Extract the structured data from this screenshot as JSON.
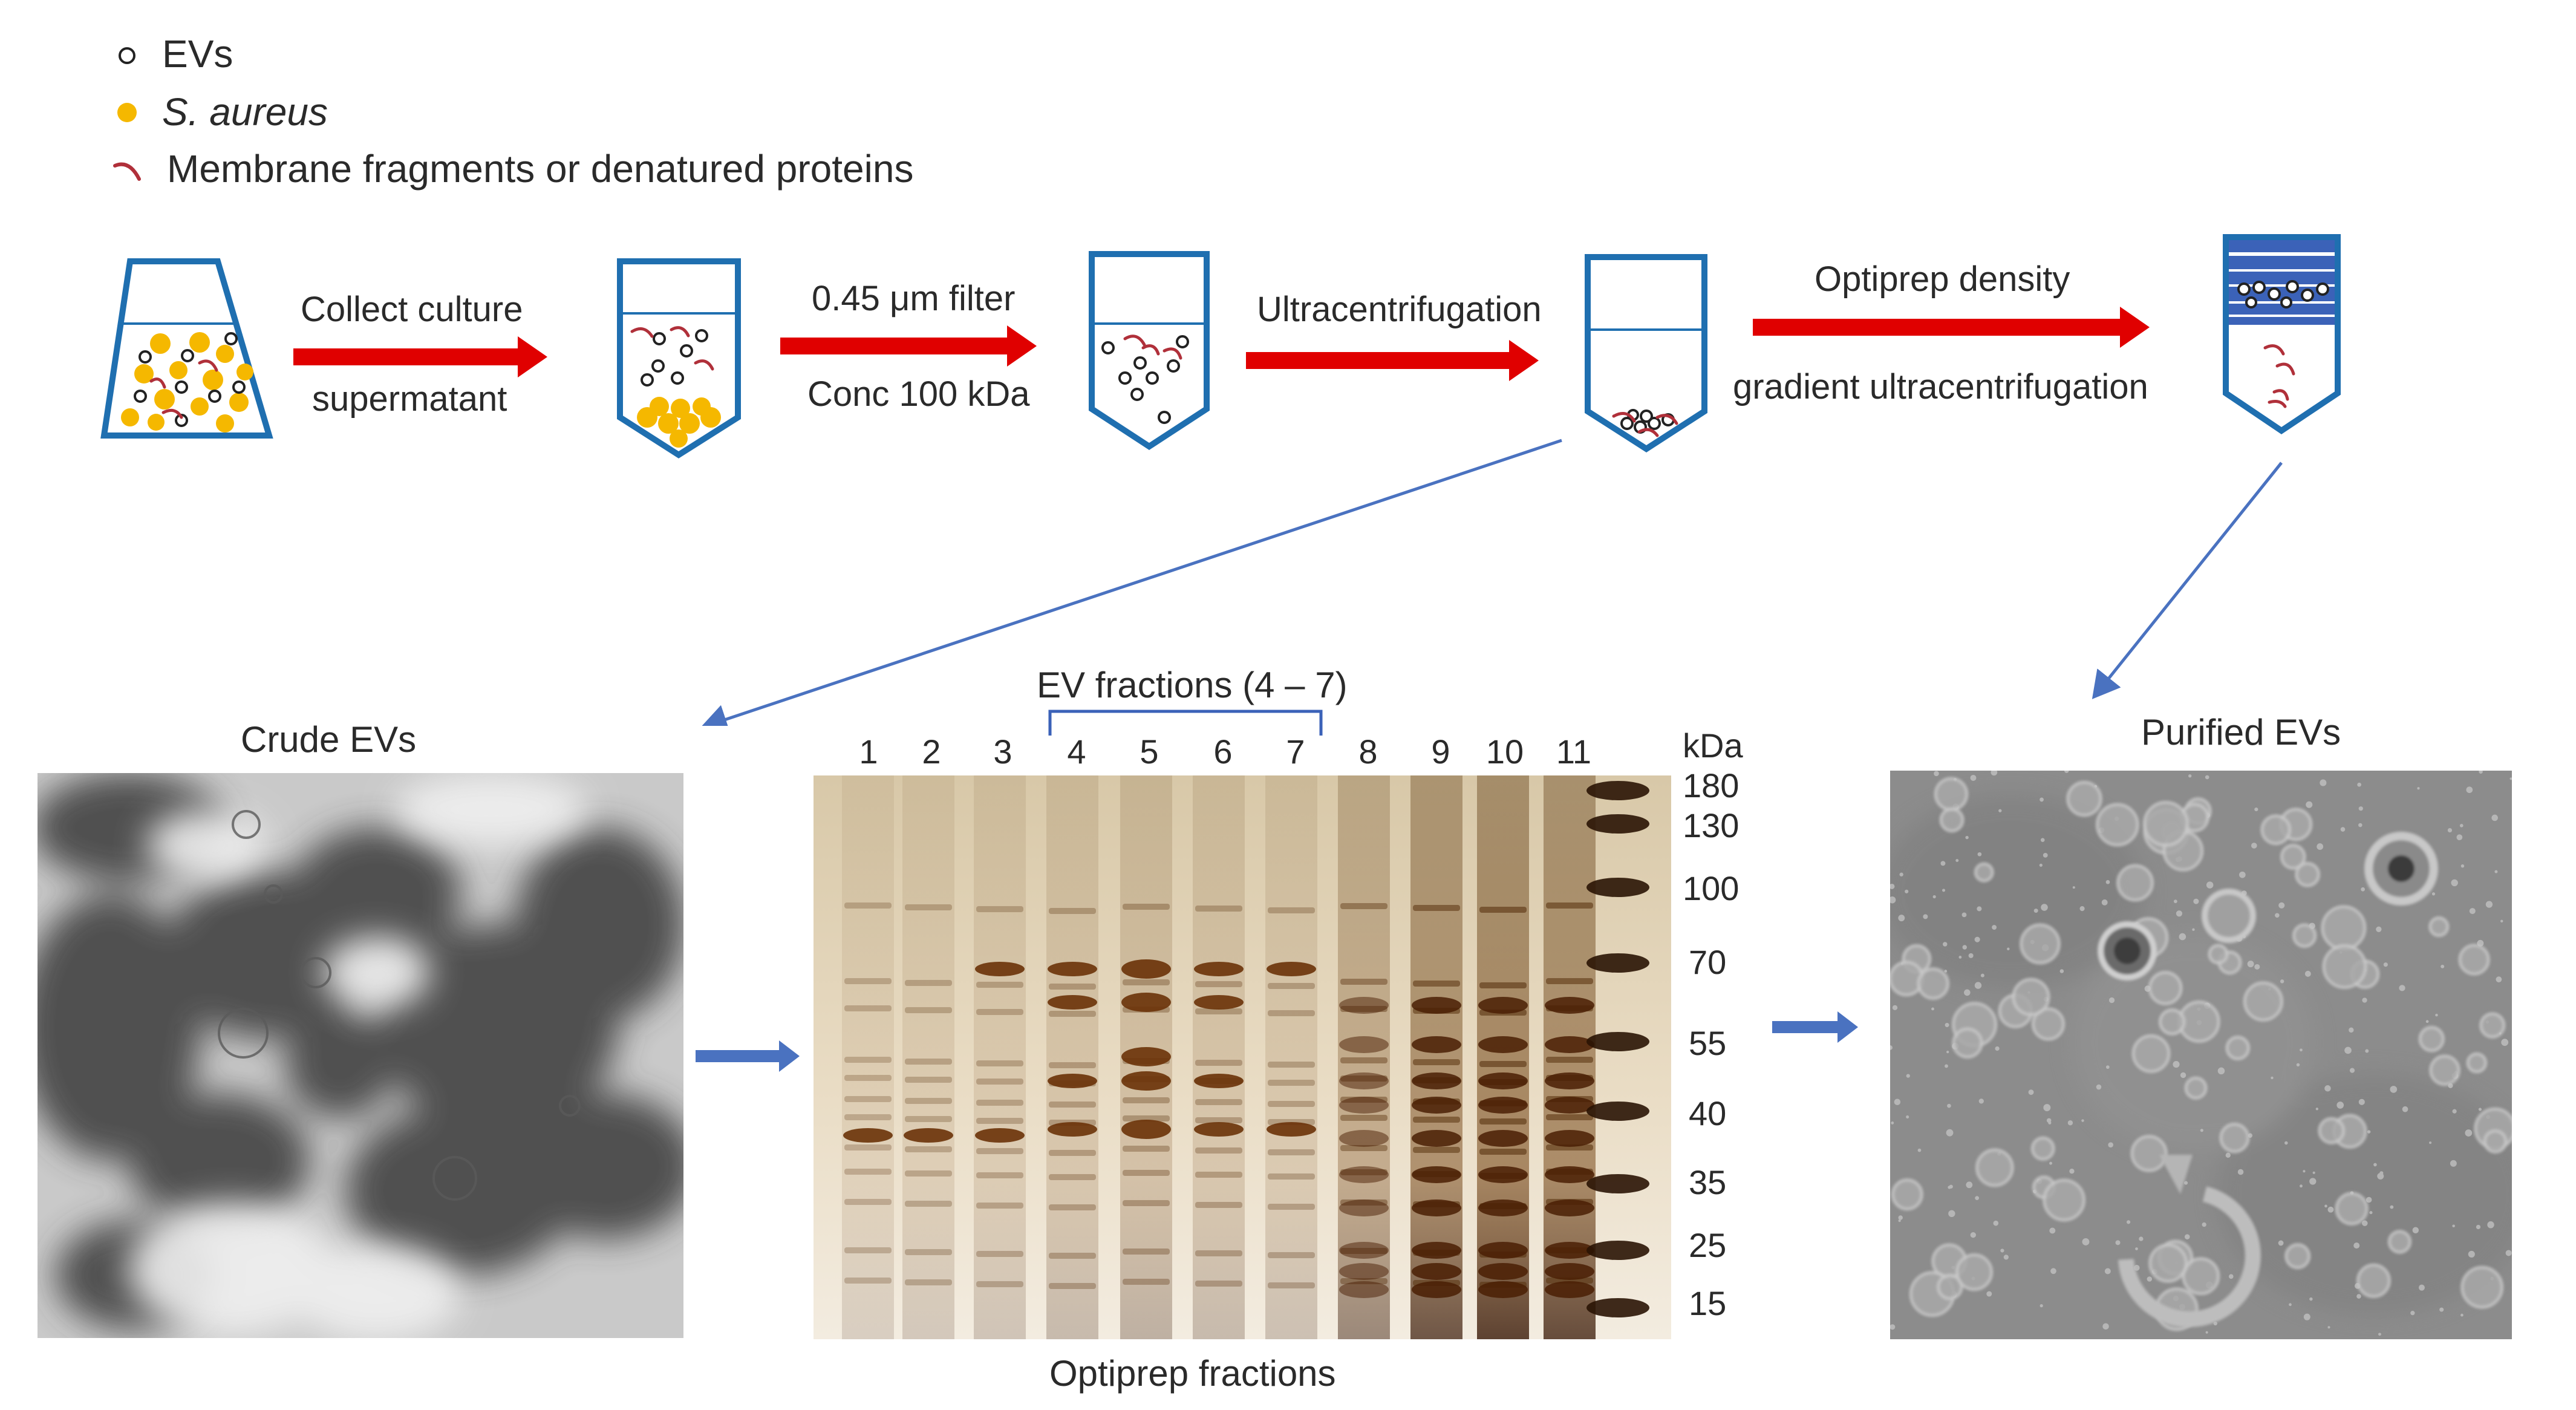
{
  "legend": {
    "items": [
      {
        "label": "EVs",
        "symbol": "open-circle-icon"
      },
      {
        "label": "S. aureus",
        "symbol": "yellow-dot-icon"
      },
      {
        "label": "Membrane fragments or denatured proteins",
        "symbol": "red-curve-icon"
      }
    ]
  },
  "workflow": {
    "steps": [
      {
        "top_label": "Collect culture",
        "bottom_label": "supermatant"
      },
      {
        "top_label": "0.45 μm filter",
        "bottom_label": "Conc 100 kDa"
      },
      {
        "top_label": "Ultracentrifugation",
        "bottom_label": ""
      },
      {
        "top_label": "Optiprep density",
        "bottom_label": "gradient ultracentrifugation"
      }
    ]
  },
  "panels": {
    "crude_title": "Crude EVs",
    "purified_title": "Purified EVs",
    "gel_caption": "Optiprep fractions",
    "ev_bracket_label": "EV fractions (4 – 7)"
  },
  "gel": {
    "lanes": [
      "1",
      "2",
      "3",
      "4",
      "5",
      "6",
      "7",
      "8",
      "9",
      "10",
      "11"
    ],
    "marker_unit": "kDa",
    "markers": [
      "180",
      "130",
      "100",
      "70",
      "55",
      "40",
      "35",
      "25",
      "15"
    ]
  },
  "colors": {
    "arrow_red": "#e00000",
    "tube_blue": "#1f6fb0",
    "connector_blue": "#4a72c0",
    "evs_yellow": "#f5b800",
    "fragment_red": "#b0303a"
  }
}
